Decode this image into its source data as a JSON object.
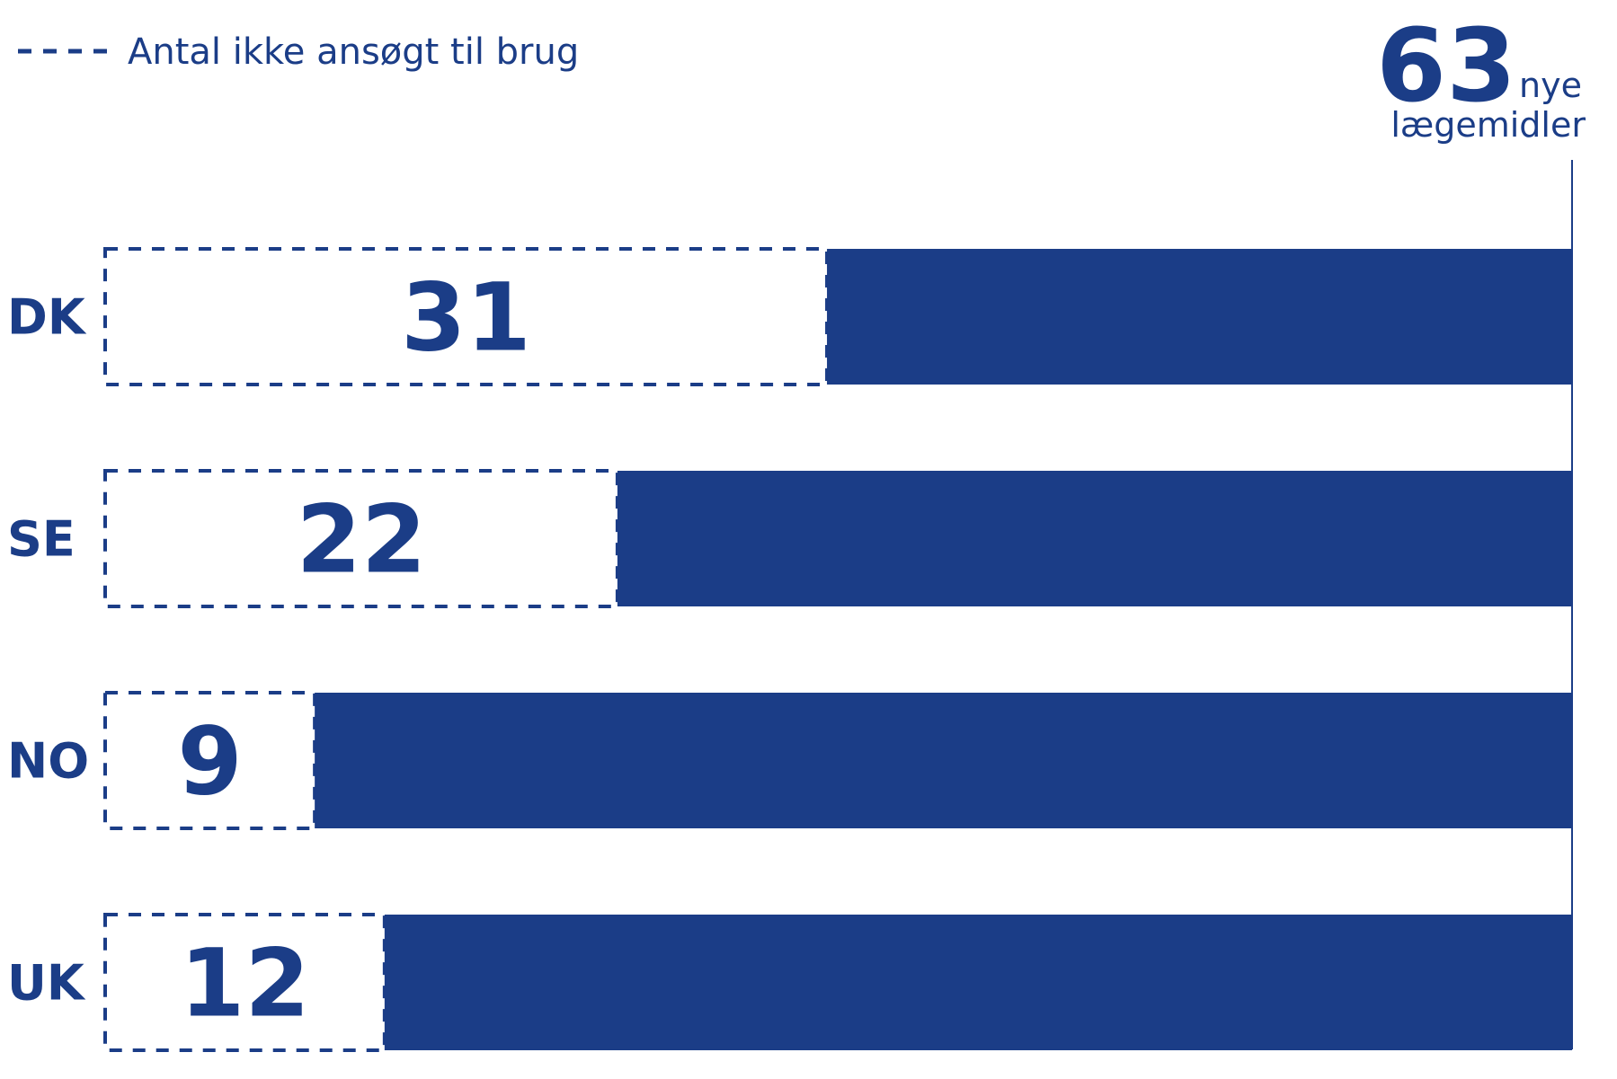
{
  "chart_data": {
    "type": "bar",
    "orientation": "horizontal",
    "stacked": true,
    "categories": [
      "DK",
      "SE",
      "NO",
      "UK"
    ],
    "total": 63,
    "total_label": "63",
    "total_unit_line1": "nye",
    "total_unit_line2": "lægemidler",
    "series": [
      {
        "name": "Antal ikke ansøgt til brug",
        "style": "dashed-outline",
        "values": [
          31,
          22,
          9,
          12
        ]
      },
      {
        "style": "solid",
        "values": [
          32,
          41,
          54,
          51
        ]
      }
    ],
    "legend": {
      "position": "top-left",
      "label": "Antal ikke ansøgt til brug"
    },
    "xlim": [
      0,
      63
    ],
    "grid": false,
    "colors": {
      "primary": "#1b3d87",
      "background": "#ffffff"
    }
  }
}
